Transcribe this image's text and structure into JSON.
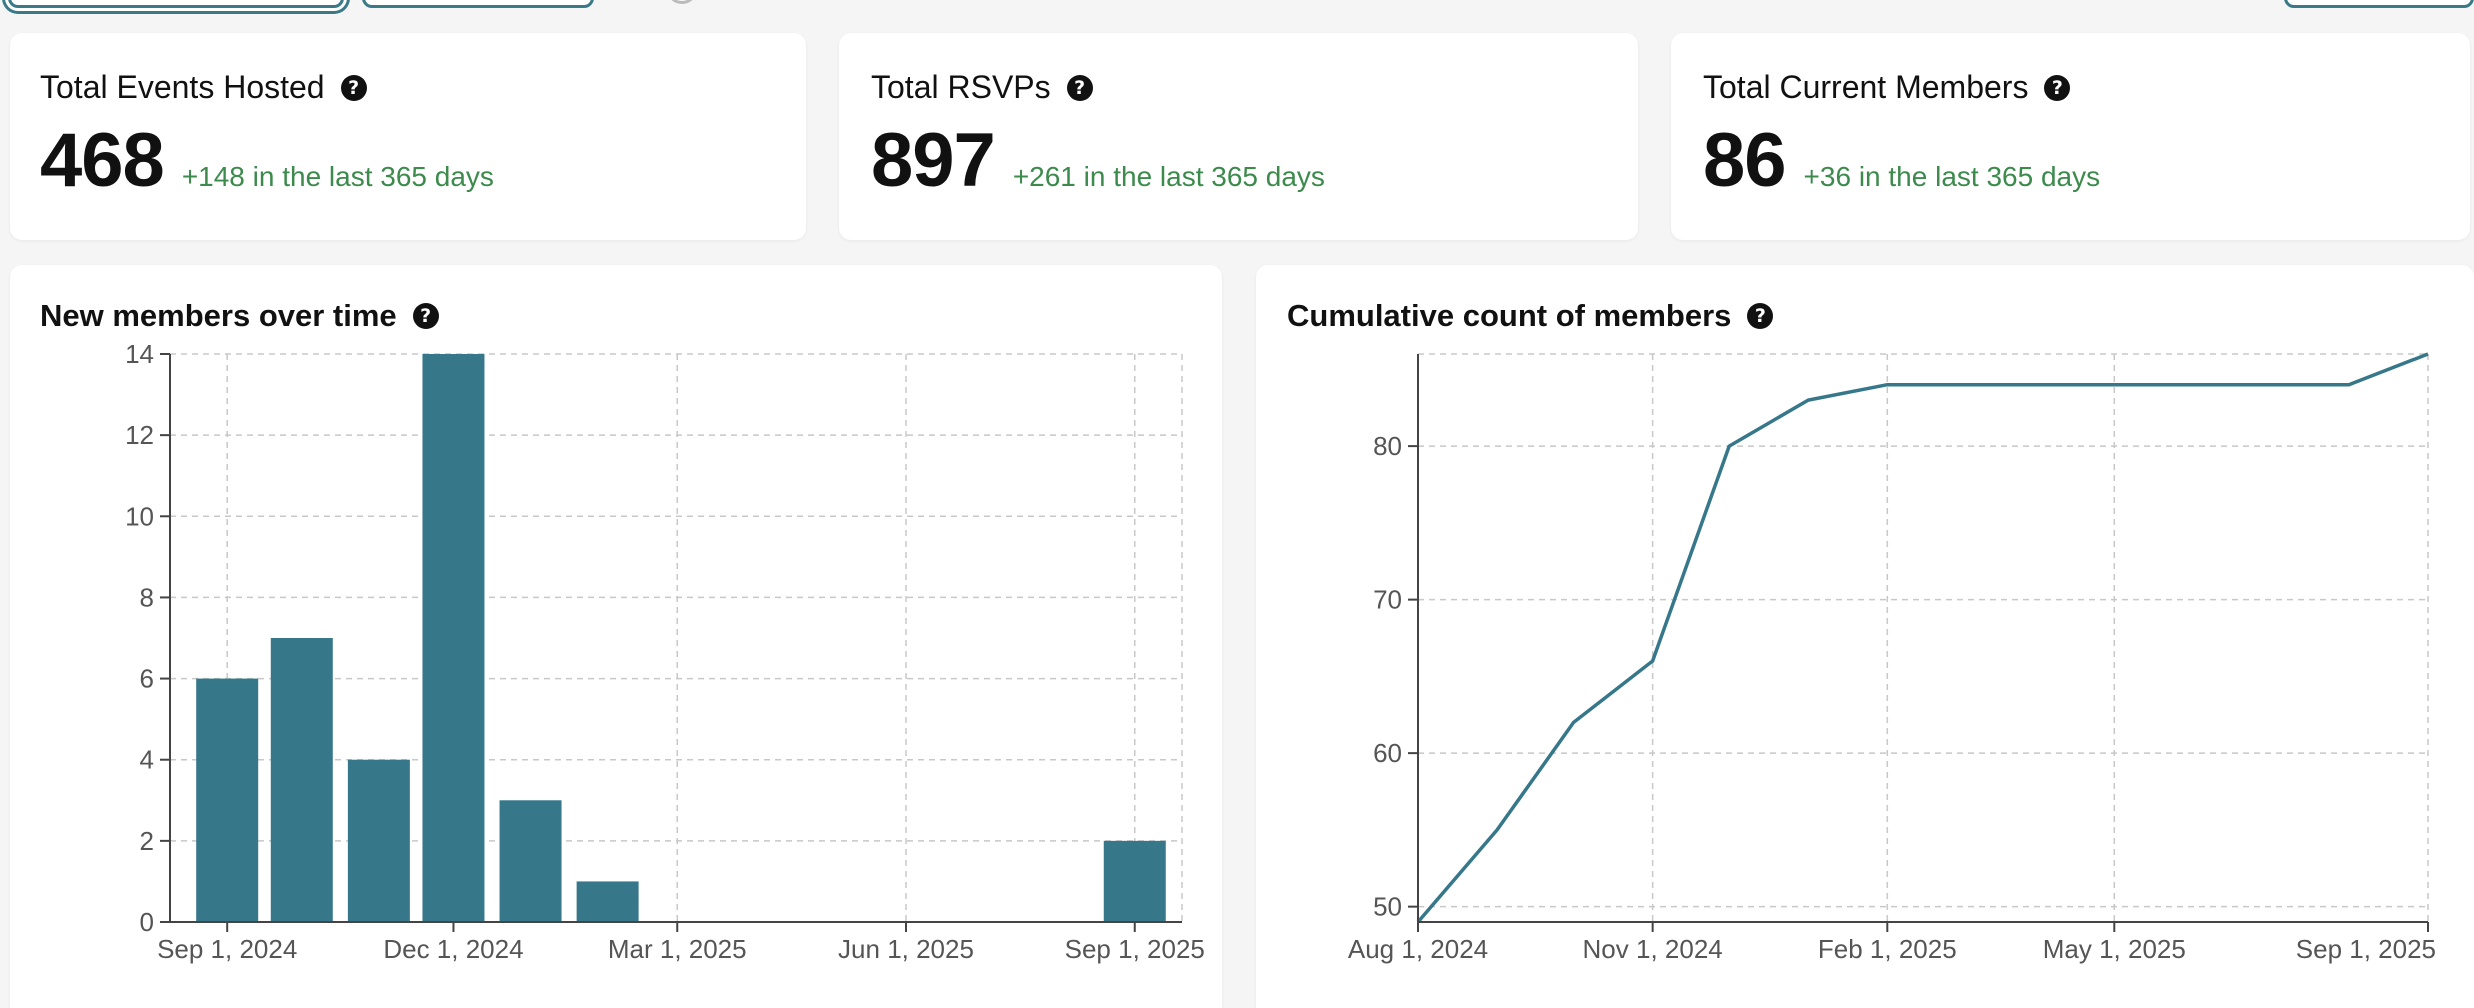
{
  "stats": [
    {
      "title": "Total Events Hosted",
      "value": "468",
      "delta": "+148 in the last 365 days"
    },
    {
      "title": "Total RSVPs",
      "value": "897",
      "delta": "+261 in the last 365 days"
    },
    {
      "title": "Total Current Members",
      "value": "86",
      "delta": "+36 in the last 365 days"
    }
  ],
  "charts": {
    "new_members": {
      "title": "New members over time"
    },
    "cumulative": {
      "title": "Cumulative count of members"
    }
  },
  "colors": {
    "accent": "#36788a",
    "positive": "#3c8a4c"
  },
  "icons": {
    "help": "question-circle-icon"
  },
  "chart_data": [
    {
      "type": "bar",
      "title": "New members over time",
      "x_type": "date",
      "x": [
        "2024-09-01",
        "2024-10-01",
        "2024-11-01",
        "2024-12-01",
        "2025-01-01",
        "2025-02-01",
        "2025-09-01"
      ],
      "values": [
        6,
        7,
        4,
        14,
        3,
        1,
        2
      ],
      "xlim": [
        "2024-08-09",
        "2025-09-20"
      ],
      "ylim": [
        0,
        14
      ],
      "yticks": [
        0,
        2,
        4,
        6,
        8,
        10,
        12,
        14
      ],
      "xticks": [
        {
          "date": "2024-09-01",
          "label": "Sep 1, 2024"
        },
        {
          "date": "2024-12-01",
          "label": "Dec 1, 2024"
        },
        {
          "date": "2025-03-01",
          "label": "Mar 1, 2025"
        },
        {
          "date": "2025-06-01",
          "label": "Jun 1, 2025"
        },
        {
          "date": "2025-09-01",
          "label": "Sep 1, 2025"
        }
      ],
      "grid": true
    },
    {
      "type": "line",
      "title": "Cumulative count of members",
      "x_type": "date",
      "x": [
        "2024-08-01",
        "2024-09-01",
        "2024-10-01",
        "2024-11-01",
        "2024-12-01",
        "2025-01-01",
        "2025-02-01",
        "2025-03-01",
        "2025-04-01",
        "2025-05-01",
        "2025-06-01",
        "2025-07-01",
        "2025-08-01",
        "2025-09-01"
      ],
      "values": [
        49,
        55,
        62,
        66,
        80,
        83,
        84,
        84,
        84,
        84,
        84,
        84,
        84,
        86
      ],
      "xlim": [
        "2024-08-01",
        "2025-09-01"
      ],
      "ylim": [
        49,
        86
      ],
      "yticks": [
        50,
        60,
        70,
        80
      ],
      "xticks": [
        {
          "date": "2024-08-01",
          "label": "Aug 1, 2024"
        },
        {
          "date": "2024-11-01",
          "label": "Nov 1, 2024"
        },
        {
          "date": "2025-02-01",
          "label": "Feb 1, 2025"
        },
        {
          "date": "2025-05-01",
          "label": "May 1, 2025"
        },
        {
          "date": "2025-09-01",
          "label": "Sep 1, 2025"
        }
      ],
      "grid": true
    }
  ]
}
